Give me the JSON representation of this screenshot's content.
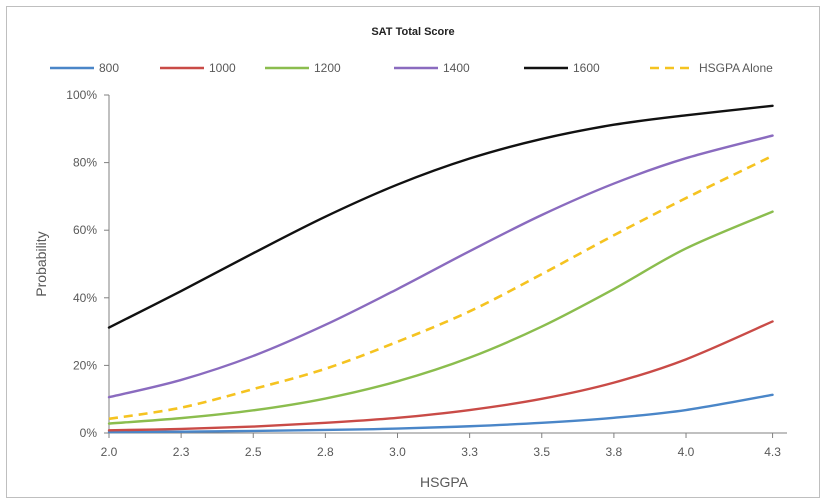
{
  "chart_data": {
    "type": "line",
    "title": "SAT Total Score",
    "xlabel": "HSGPA",
    "ylabel": "Probability",
    "xlim": [
      2.0,
      4.35
    ],
    "ylim": [
      0,
      1
    ],
    "x_ticks": [
      2.0,
      2.25,
      2.5,
      2.75,
      3.0,
      3.25,
      3.5,
      3.75,
      4.0,
      4.3
    ],
    "x_tick_labels": [
      "2.0",
      "2.3",
      "2.5",
      "2.8",
      "3.0",
      "3.3",
      "3.5",
      "3.8",
      "4.0",
      "4.3"
    ],
    "y_ticks": [
      0,
      0.2,
      0.4,
      0.6,
      0.8,
      1.0
    ],
    "y_tick_labels": [
      "0%",
      "20%",
      "40%",
      "60%",
      "80%",
      "100%"
    ],
    "legend_position": "top",
    "grid": false,
    "x": [
      2.0,
      2.25,
      2.5,
      2.75,
      3.0,
      3.25,
      3.5,
      3.75,
      4.0,
      4.3
    ],
    "series": [
      {
        "name": "800",
        "color": "#4a86c8",
        "dashed": false,
        "values": [
          0.003,
          0.004,
          0.006,
          0.009,
          0.013,
          0.02,
          0.03,
          0.045,
          0.068,
          0.113
        ]
      },
      {
        "name": "1000",
        "color": "#c94b47",
        "dashed": false,
        "values": [
          0.008,
          0.012,
          0.019,
          0.03,
          0.045,
          0.068,
          0.101,
          0.149,
          0.218,
          0.33
        ]
      },
      {
        "name": "1200",
        "color": "#8bbd4e",
        "dashed": false,
        "values": [
          0.028,
          0.044,
          0.067,
          0.102,
          0.153,
          0.223,
          0.315,
          0.426,
          0.546,
          0.655
        ]
      },
      {
        "name": "1400",
        "color": "#8a6bbf",
        "dashed": false,
        "values": [
          0.106,
          0.157,
          0.228,
          0.32,
          0.426,
          0.538,
          0.645,
          0.738,
          0.813,
          0.88
        ]
      },
      {
        "name": "1600",
        "color": "#111111",
        "dashed": false,
        "values": [
          0.312,
          0.42,
          0.532,
          0.64,
          0.735,
          0.812,
          0.87,
          0.912,
          0.94,
          0.968
        ]
      },
      {
        "name": "HSGPA Alone",
        "color": "#f5c320",
        "dashed": true,
        "values": [
          0.042,
          0.075,
          0.13,
          0.19,
          0.27,
          0.36,
          0.47,
          0.585,
          0.695,
          0.82
        ]
      }
    ]
  }
}
